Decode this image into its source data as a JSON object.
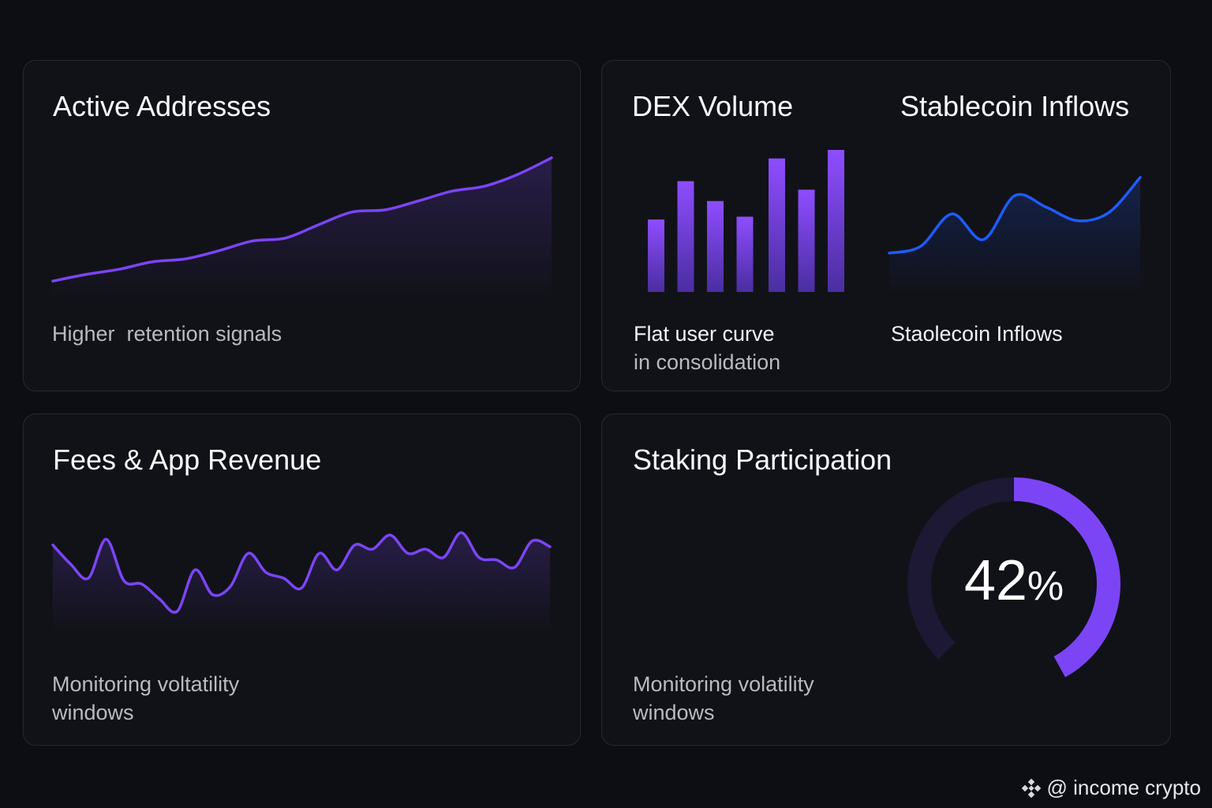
{
  "cards": {
    "active": {
      "title": "Active Addresses",
      "caption": "Higher  retention signals"
    },
    "dex": {
      "title": "DEX Volume",
      "caption_line1": "Flat user curve",
      "caption_line2": "in consolidation"
    },
    "stable": {
      "title": "Stablecoin Inflows",
      "caption": "Staolecoin Inflows"
    },
    "fees": {
      "title": "Fees & App Revenue",
      "caption_line1": "Monitoring voltatility",
      "caption_line2": "windows"
    },
    "staking": {
      "title": "Staking Participation",
      "caption_line1": "Monitoring volatility",
      "caption_line2": "windows",
      "value_number": "42",
      "value_unit": "%"
    }
  },
  "brand": {
    "handle": "@ income crypto",
    "icon": "binance-logo-icon"
  },
  "colors": {
    "purple": "#7b45f5",
    "blue": "#1f5bff",
    "track": "#1d1833"
  },
  "chart_data": [
    {
      "type": "area",
      "name_ref": "Active Addresses",
      "x": [
        0,
        1,
        2,
        3,
        4,
        5,
        6,
        7,
        8,
        9,
        10,
        11,
        12,
        13,
        14,
        15
      ],
      "values": [
        4,
        13,
        20,
        30,
        34,
        45,
        58,
        62,
        80,
        97,
        100,
        112,
        125,
        132,
        148,
        170
      ]
    },
    {
      "type": "bar",
      "name_ref": "DEX Volume",
      "values": [
        51,
        78,
        64,
        53,
        94,
        72,
        100
      ]
    },
    {
      "type": "area",
      "name_ref": "Stablecoin Inflows",
      "x": [
        0,
        1,
        2,
        3,
        4,
        5,
        6,
        7,
        8
      ],
      "values": [
        40,
        50,
        98,
        60,
        125,
        108,
        88,
        100,
        152
      ]
    },
    {
      "type": "area",
      "name_ref": "Fees & App Revenue",
      "x": [
        0,
        1,
        2,
        3,
        4,
        5,
        6,
        7,
        8,
        9,
        10,
        11,
        12,
        13,
        14,
        15,
        16,
        17,
        18,
        19,
        20,
        21,
        22,
        23,
        24,
        25,
        26,
        27,
        28
      ],
      "values": [
        85,
        62,
        45,
        92,
        42,
        38,
        20,
        5,
        55,
        25,
        35,
        75,
        52,
        45,
        33,
        75,
        55,
        85,
        80,
        97,
        75,
        80,
        70,
        100,
        70,
        67,
        58,
        90,
        83
      ]
    },
    {
      "type": "gauge",
      "name_ref": "Staking Participation",
      "value": 42,
      "max": 100
    }
  ]
}
